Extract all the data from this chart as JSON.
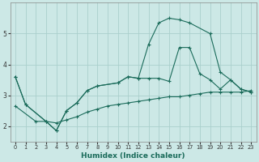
{
  "xlabel": "Humidex (Indice chaleur)",
  "bg_color": "#cce8e6",
  "grid_color": "#aacfcc",
  "line_color": "#1a6b5a",
  "xlim": [
    -0.5,
    23.5
  ],
  "ylim": [
    1.5,
    6.0
  ],
  "yticks": [
    2,
    3,
    4,
    5
  ],
  "xticks": [
    0,
    1,
    2,
    3,
    4,
    5,
    6,
    7,
    8,
    9,
    10,
    11,
    12,
    13,
    14,
    15,
    16,
    17,
    18,
    19,
    20,
    21,
    22,
    23
  ],
  "line1_x": [
    0,
    1,
    3,
    4,
    5,
    6,
    7,
    8,
    10,
    11,
    12,
    13,
    14,
    15,
    16,
    17,
    19,
    20,
    21,
    22,
    23
  ],
  "line1_y": [
    3.6,
    2.7,
    2.15,
    1.85,
    2.5,
    2.75,
    3.15,
    3.3,
    3.4,
    3.6,
    3.55,
    4.65,
    5.35,
    5.5,
    5.45,
    5.35,
    5.0,
    3.75,
    3.5,
    3.2,
    3.1
  ],
  "line2_x": [
    0,
    1,
    3,
    4,
    5,
    6,
    7,
    8,
    10,
    11,
    12,
    13,
    14,
    15,
    16,
    17,
    18,
    19,
    20,
    21,
    22,
    23
  ],
  "line2_y": [
    3.6,
    2.7,
    2.15,
    1.85,
    2.5,
    2.75,
    3.15,
    3.3,
    3.4,
    3.6,
    3.55,
    3.55,
    3.55,
    3.45,
    4.55,
    4.55,
    3.7,
    3.5,
    3.2,
    3.5,
    3.2,
    3.1
  ],
  "line3_x": [
    0,
    2,
    3,
    4,
    5,
    6,
    7,
    8,
    9,
    10,
    11,
    12,
    13,
    14,
    15,
    16,
    17,
    18,
    19,
    20,
    21,
    22,
    23
  ],
  "line3_y": [
    2.65,
    2.15,
    2.15,
    2.1,
    2.2,
    2.3,
    2.45,
    2.55,
    2.65,
    2.7,
    2.75,
    2.8,
    2.85,
    2.9,
    2.95,
    2.95,
    3.0,
    3.05,
    3.1,
    3.1,
    3.1,
    3.1,
    3.15
  ]
}
